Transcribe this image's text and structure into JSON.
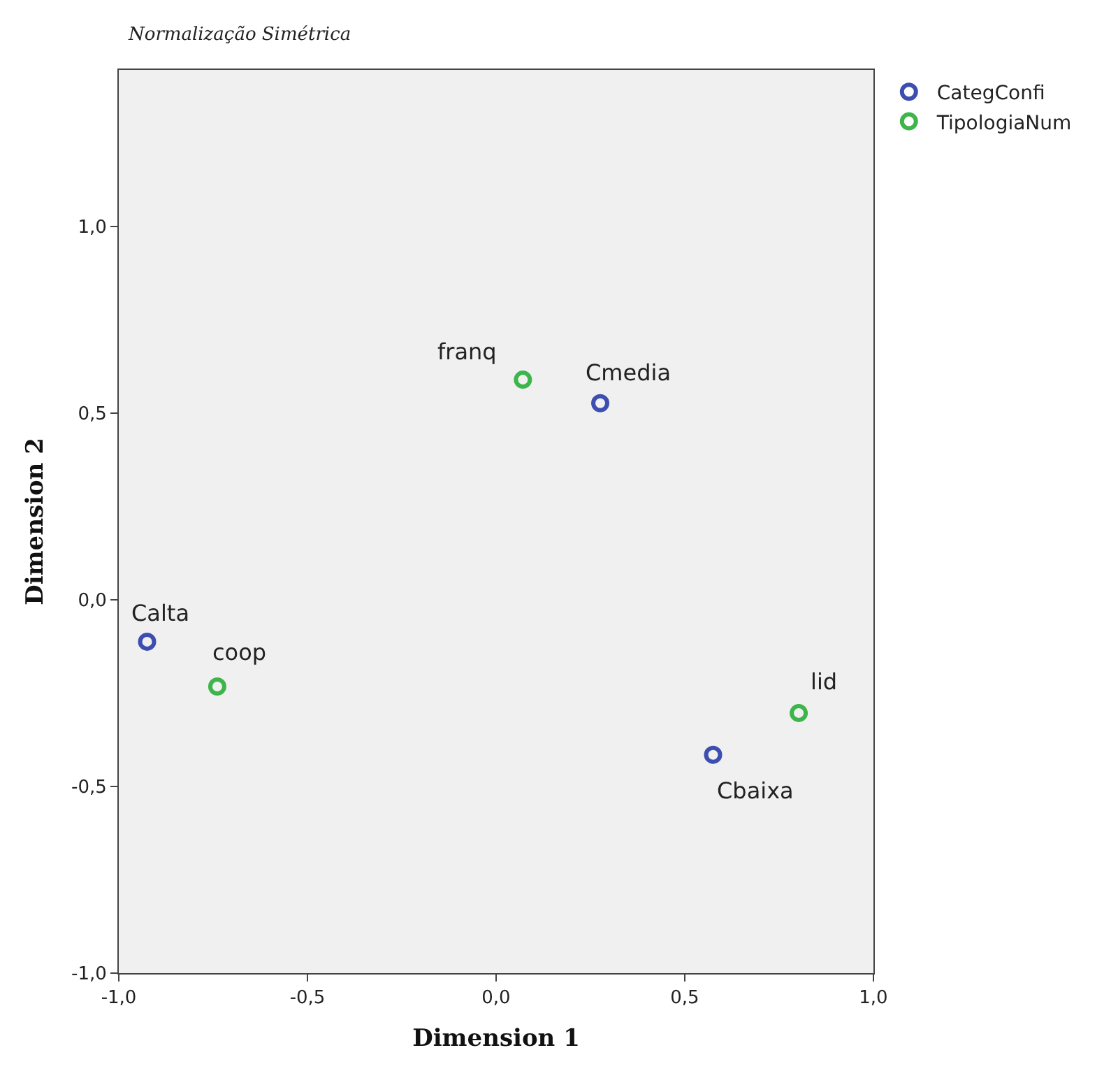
{
  "chart_data": {
    "type": "scatter",
    "title": "Normalização Simétrica",
    "xlabel": "Dimension 1",
    "ylabel": "Dimension 2",
    "series": [
      {
        "name": "CategConfi",
        "color": "#3c4fb0",
        "x": [
          -0.925,
          0.276,
          0.575
        ],
        "values": [
          -0.112,
          0.527,
          -0.415
        ]
      },
      {
        "name": "TipologiaNum",
        "color": "#3db54a",
        "x": [
          -0.739,
          0.071,
          0.802
        ],
        "values": [
          -0.232,
          0.59,
          -0.303
        ]
      }
    ],
    "annotations": [
      {
        "text": "Calta",
        "x": -0.925,
        "y": -0.112
      },
      {
        "text": "Cmedia",
        "x": 0.276,
        "y": 0.527
      },
      {
        "text": "Cbaixa",
        "x": 0.575,
        "y": -0.415
      },
      {
        "text": "coop",
        "x": -0.739,
        "y": -0.232
      },
      {
        "text": "franq",
        "x": 0.071,
        "y": 0.59
      },
      {
        "text": "lid",
        "x": 0.802,
        "y": -0.303
      }
    ],
    "xlim": [
      -1.0,
      1.0
    ],
    "ylim": [
      -1.0,
      1.42
    ],
    "xticks": [
      {
        "value": -1.0,
        "label": "-1,0"
      },
      {
        "value": -0.5,
        "label": "-0,5"
      },
      {
        "value": 0.0,
        "label": "0,0"
      },
      {
        "value": 0.5,
        "label": "0,5"
      },
      {
        "value": 1.0,
        "label": "1,0"
      }
    ],
    "yticks": [
      {
        "value": -1.0,
        "label": "-1,0"
      },
      {
        "value": -0.5,
        "label": "-0,5"
      },
      {
        "value": 0.0,
        "label": "0,0"
      },
      {
        "value": 0.5,
        "label": "0,5"
      },
      {
        "value": 1.0,
        "label": "1,0"
      }
    ],
    "marker": "circle",
    "legend": "top right",
    "grid": false
  }
}
